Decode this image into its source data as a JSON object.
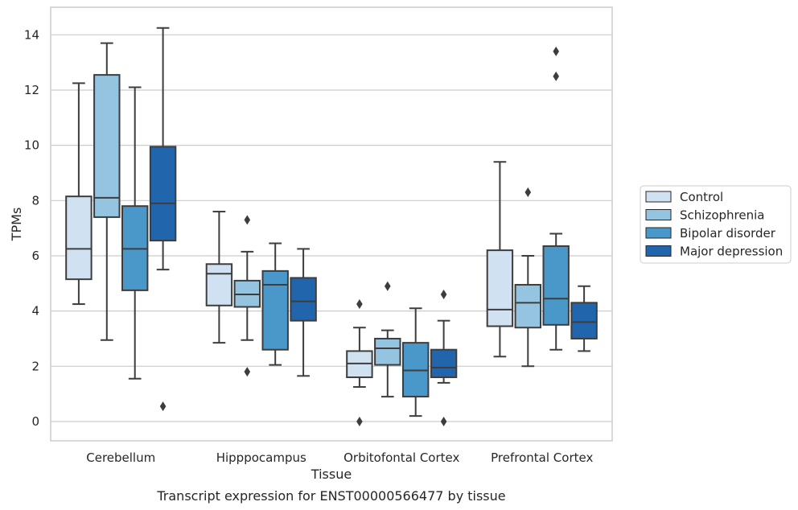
{
  "chart_data": {
    "type": "box",
    "caption": "Transcript expression for ENST00000566477 by tissue",
    "xlabel": "Tissue",
    "ylabel": "TPMs",
    "ylim": [
      -0.7,
      15
    ],
    "yticks": [
      0,
      2,
      4,
      6,
      8,
      10,
      12,
      14
    ],
    "grid": true,
    "legend_placement": "right",
    "categories": [
      "Cerebellum",
      "Hipppocampus",
      "Orbitofontal Cortex",
      "Prefrontal Cortex"
    ],
    "series": [
      {
        "name": "Control",
        "color": "#d0e1f2",
        "boxes": [
          {
            "whislo": 4.25,
            "q1": 5.15,
            "med": 6.25,
            "q3": 8.15,
            "whishi": 12.25,
            "fliers": []
          },
          {
            "whislo": 2.85,
            "q1": 4.2,
            "med": 5.35,
            "q3": 5.7,
            "whishi": 7.6,
            "fliers": []
          },
          {
            "whislo": 1.25,
            "q1": 1.6,
            "med": 2.1,
            "q3": 2.55,
            "whishi": 3.4,
            "fliers": [
              4.25,
              0.0
            ]
          },
          {
            "whislo": 2.35,
            "q1": 3.45,
            "med": 4.05,
            "q3": 6.2,
            "whishi": 9.4,
            "fliers": []
          }
        ]
      },
      {
        "name": "Schizophrenia",
        "color": "#94c4df",
        "boxes": [
          {
            "whislo": 2.95,
            "q1": 7.4,
            "med": 8.1,
            "q3": 12.55,
            "whishi": 13.7,
            "fliers": []
          },
          {
            "whislo": 2.95,
            "q1": 4.15,
            "med": 4.6,
            "q3": 5.1,
            "whishi": 6.15,
            "fliers": [
              7.3,
              1.8
            ]
          },
          {
            "whislo": 0.9,
            "q1": 2.05,
            "med": 2.65,
            "q3": 3.0,
            "whishi": 3.3,
            "fliers": [
              4.9
            ]
          },
          {
            "whislo": 2.0,
            "q1": 3.4,
            "med": 4.3,
            "q3": 4.95,
            "whishi": 6.0,
            "fliers": [
              8.3
            ]
          }
        ]
      },
      {
        "name": "Bipolar disorder",
        "color": "#4a98c9",
        "boxes": [
          {
            "whislo": 1.55,
            "q1": 4.75,
            "med": 6.25,
            "q3": 7.8,
            "whishi": 12.1,
            "fliers": []
          },
          {
            "whislo": 2.05,
            "q1": 2.6,
            "med": 4.95,
            "q3": 5.45,
            "whishi": 6.45,
            "fliers": []
          },
          {
            "whislo": 0.2,
            "q1": 0.9,
            "med": 1.85,
            "q3": 2.85,
            "whishi": 4.1,
            "fliers": []
          },
          {
            "whislo": 2.6,
            "q1": 3.5,
            "med": 4.45,
            "q3": 6.35,
            "whishi": 6.8,
            "fliers": [
              13.4,
              12.5
            ]
          }
        ]
      },
      {
        "name": "Major depression",
        "color": "#2166ac",
        "boxes": [
          {
            "whislo": 5.5,
            "q1": 6.55,
            "med": 7.9,
            "q3": 9.95,
            "whishi": 14.25,
            "fliers": [
              0.55
            ]
          },
          {
            "whislo": 1.65,
            "q1": 3.65,
            "med": 4.35,
            "q3": 5.2,
            "whishi": 6.25,
            "fliers": []
          },
          {
            "whislo": 1.4,
            "q1": 1.6,
            "med": 1.95,
            "q3": 2.6,
            "whishi": 3.65,
            "fliers": [
              4.6,
              0.0
            ]
          },
          {
            "whislo": 2.55,
            "q1": 3.0,
            "med": 3.6,
            "q3": 4.3,
            "whishi": 4.9,
            "fliers": []
          }
        ]
      }
    ]
  }
}
